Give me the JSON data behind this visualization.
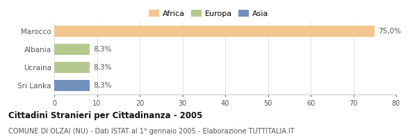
{
  "categories": [
    "Marocco",
    "Albania",
    "Ucraina",
    "Sri Lanka"
  ],
  "values": [
    75.0,
    8.3,
    8.3,
    8.3
  ],
  "labels": [
    "75,0%",
    "8,3%",
    "8,3%",
    "8,3%"
  ],
  "colors": [
    "#f2c68e",
    "#b5c98e",
    "#b5c98e",
    "#7090bb"
  ],
  "legend_items": [
    {
      "label": "Africa",
      "color": "#f2c68e"
    },
    {
      "label": "Europa",
      "color": "#b5c98e"
    },
    {
      "label": "Asia",
      "color": "#7090bb"
    }
  ],
  "xlim": [
    0,
    80
  ],
  "xticks": [
    0,
    10,
    20,
    30,
    40,
    50,
    60,
    70,
    80
  ],
  "title": "Cittadini Stranieri per Cittadinanza - 2005",
  "subtitle": "COMUNE DI OLZAI (NU) - Dati ISTAT al 1° gennaio 2005 - Elaborazione TUTTITALIA.IT",
  "title_fontsize": 8.5,
  "subtitle_fontsize": 7.0,
  "label_fontsize": 7.5,
  "ytick_fontsize": 7.5,
  "xtick_fontsize": 7.0,
  "legend_fontsize": 8.0,
  "background_color": "#ffffff",
  "bar_height": 0.6,
  "grid_color": "#dddddd",
  "text_color": "#555555",
  "title_color": "#111111",
  "subtitle_color": "#555555"
}
